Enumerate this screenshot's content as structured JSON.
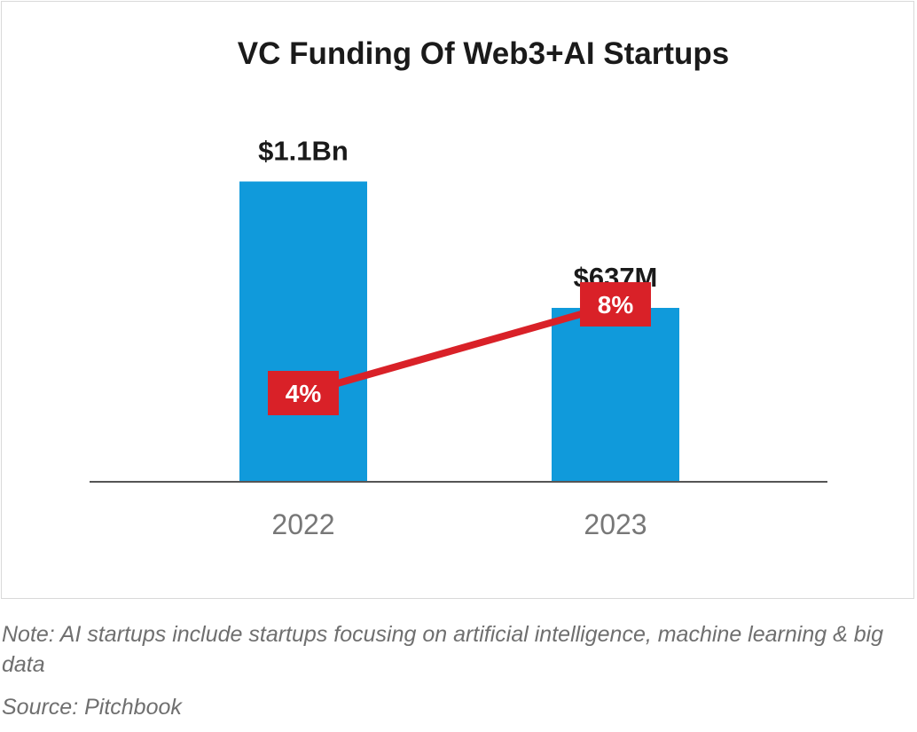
{
  "chart_data": {
    "type": "bar",
    "title": "VC Funding Of Web3+AI Startups",
    "categories": [
      "2022",
      "2023"
    ],
    "values": [
      1100,
      637
    ],
    "value_labels": [
      "$1.1Bn",
      "$637M"
    ],
    "units": "USD millions",
    "ylim": [
      0,
      1300
    ],
    "xlabel": "",
    "ylabel": "",
    "grid": false,
    "line_series": {
      "values": [
        4,
        8
      ],
      "labels": [
        "4%",
        "8%"
      ],
      "units": "percent",
      "ylim": [
        0,
        16
      ]
    },
    "colors": {
      "bar": "#109ADB",
      "line": "#D92128",
      "axis": "#555555"
    }
  },
  "footer": {
    "note": "Note: AI startups include startups focusing on artificial intelligence, machine learning & big data",
    "source": "Source: Pitchbook"
  }
}
